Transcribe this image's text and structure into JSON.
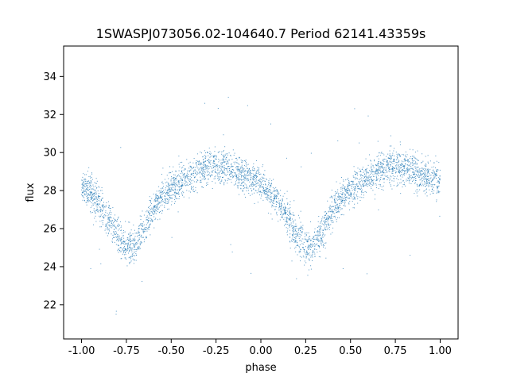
{
  "chart_data": {
    "type": "scatter",
    "title": "1SWASPJ073056.02-104640.7 Period 62141.43359s",
    "xlabel": "phase",
    "ylabel": "flux",
    "xlim": [
      -1.1,
      1.1
    ],
    "ylim": [
      20.2,
      35.6
    ],
    "x_ticks": [
      "-1.00",
      "-0.75",
      "-0.50",
      "-0.25",
      "0.00",
      "0.25",
      "0.50",
      "0.75",
      "1.00"
    ],
    "x_tick_values": [
      -1.0,
      -0.75,
      -0.5,
      -0.25,
      0.0,
      0.25,
      0.5,
      0.75,
      1.0
    ],
    "y_ticks": [
      "22",
      "24",
      "26",
      "28",
      "30",
      "32",
      "34"
    ],
    "y_tick_values": [
      22,
      24,
      26,
      28,
      30,
      32,
      34
    ],
    "grid": false,
    "point_color": "#1f77b4",
    "series": [
      {
        "phase_range": [
          -1.0,
          1.0
        ],
        "profile": {
          "x": [
            0.0,
            0.05,
            0.1,
            0.15,
            0.2,
            0.25,
            0.3,
            0.35,
            0.4,
            0.45,
            0.5,
            0.55,
            0.6,
            0.65,
            0.7,
            0.75,
            0.8,
            0.85,
            0.9,
            0.95,
            1.0
          ],
          "y": [
            28.3,
            27.9,
            27.3,
            26.5,
            25.6,
            25.0,
            25.2,
            26.0,
            27.0,
            27.7,
            28.1,
            28.4,
            28.7,
            29.0,
            29.2,
            29.3,
            29.2,
            29.0,
            28.8,
            28.6,
            28.5
          ]
        },
        "scatter_sigma": 0.45,
        "n_points": 4000
      }
    ]
  }
}
